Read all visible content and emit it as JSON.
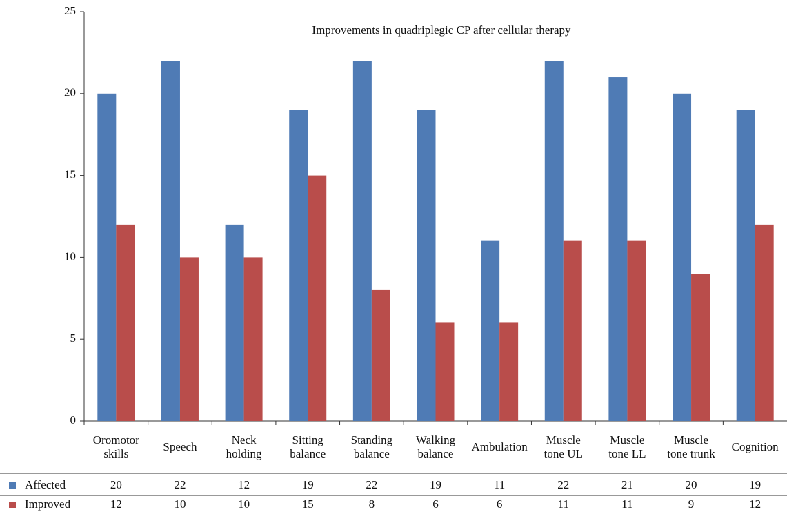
{
  "chart_data": {
    "type": "bar",
    "title": "Improvements in quadriplegic CP after cellular therapy",
    "categories": [
      "Oromotor skills",
      "Speech",
      "Neck holding",
      "Sitting balance",
      "Standing balance",
      "Walking balance",
      "Ambulation",
      "Muscle tone UL",
      "Muscle tone LL",
      "Muscle tone trunk",
      "Cognition"
    ],
    "series": [
      {
        "name": "Affected",
        "color": "#4f7bb5",
        "values": [
          20,
          22,
          12,
          19,
          22,
          19,
          11,
          22,
          21,
          20,
          19
        ]
      },
      {
        "name": "Improved",
        "color": "#b94d4b",
        "values": [
          12,
          10,
          10,
          15,
          8,
          6,
          6,
          11,
          11,
          9,
          12
        ]
      }
    ],
    "ylim": [
      0,
      25
    ],
    "yticks": [
      0,
      5,
      10,
      15,
      20,
      25
    ]
  }
}
